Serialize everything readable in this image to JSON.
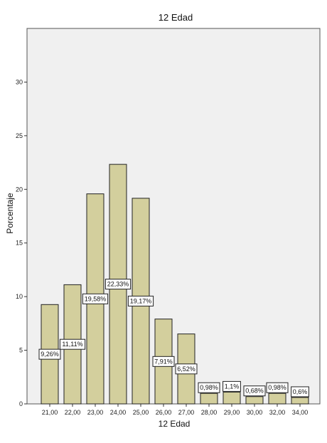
{
  "chart_data": {
    "type": "bar",
    "title": "12 Edad",
    "xlabel": "12 Edad",
    "ylabel": "Porcentaje",
    "categories": [
      "21,00",
      "22,00",
      "23,00",
      "24,00",
      "25,00",
      "26,00",
      "27,00",
      "28,00",
      "29,00",
      "30,00",
      "32,00",
      "34,00"
    ],
    "values": [
      9.26,
      11.11,
      19.58,
      22.33,
      19.17,
      7.91,
      6.52,
      0.98,
      1.1,
      0.68,
      0.98,
      0.6
    ],
    "data_labels": [
      "9,26%",
      "11,11%",
      "19,58%",
      "22,33%",
      "19,17%",
      "7,91%",
      "6,52%",
      "0,98%",
      "1,1%",
      "0,68%",
      "0,98%",
      "0,6%"
    ],
    "ylim": [
      0,
      35
    ],
    "yticks": [
      "0",
      "5",
      "10",
      "15",
      "20",
      "25",
      "30"
    ],
    "ytick_values": [
      0,
      5,
      10,
      15,
      20,
      25,
      30
    ],
    "grid": false,
    "colors": {
      "plot_bg": "#f0f0f0",
      "bar_fill": "#d3cf9d",
      "bar_stroke": "#222222",
      "label_bg": "#ffffff"
    }
  }
}
